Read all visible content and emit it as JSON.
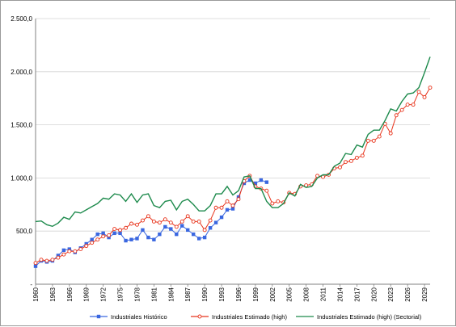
{
  "chart_data": {
    "type": "line",
    "title": "",
    "xlabel": "",
    "ylabel": "",
    "ylim": [
      0,
      2500
    ],
    "yticks": [
      0,
      500,
      1000,
      1500,
      2000,
      2500
    ],
    "ytick_labels": [
      "-",
      "500,0",
      "1.000,0",
      "1.500,0",
      "2.000,0",
      "2.500,0"
    ],
    "xlim": [
      1960,
      2030
    ],
    "xticks": [
      1960,
      1963,
      1966,
      1969,
      1972,
      1975,
      1978,
      1981,
      1984,
      1987,
      1990,
      1993,
      1996,
      1999,
      2002,
      2005,
      2008,
      2011,
      2014,
      2017,
      2020,
      2023,
      2026,
      2029
    ],
    "grid": "horizontal",
    "legend_position": "bottom",
    "series": [
      {
        "name": "Industriales Histórico",
        "color": "#3a67e0",
        "marker": "square",
        "x": [
          1960,
          1961,
          1962,
          1963,
          1964,
          1965,
          1966,
          1967,
          1968,
          1969,
          1970,
          1971,
          1972,
          1973,
          1974,
          1975,
          1976,
          1977,
          1978,
          1979,
          1980,
          1981,
          1982,
          1983,
          1984,
          1985,
          1986,
          1987,
          1988,
          1989,
          1990,
          1991,
          1992,
          1993,
          1994,
          1995,
          1996,
          1997,
          1998,
          1999,
          2000,
          2001
        ],
        "y": [
          170,
          220,
          210,
          220,
          270,
          320,
          330,
          300,
          340,
          380,
          420,
          470,
          480,
          440,
          480,
          480,
          410,
          420,
          430,
          510,
          440,
          420,
          470,
          540,
          520,
          470,
          550,
          510,
          470,
          430,
          440,
          530,
          580,
          630,
          700,
          710,
          820,
          950,
          980,
          950,
          980,
          960
        ]
      },
      {
        "name": "Industriales Estimado (high)",
        "color": "#e8341c",
        "marker": "circle",
        "x": [
          1960,
          1961,
          1962,
          1963,
          1964,
          1965,
          1966,
          1967,
          1968,
          1969,
          1970,
          1971,
          1972,
          1973,
          1974,
          1975,
          1976,
          1977,
          1978,
          1979,
          1980,
          1981,
          1982,
          1983,
          1984,
          1985,
          1986,
          1987,
          1988,
          1989,
          1990,
          1991,
          1992,
          1993,
          1994,
          1995,
          1996,
          1997,
          1998,
          1999,
          2000,
          2001,
          2002,
          2003,
          2004,
          2005,
          2006,
          2007,
          2008,
          2009,
          2010,
          2011,
          2012,
          2013,
          2014,
          2015,
          2016,
          2017,
          2018,
          2019,
          2020,
          2021,
          2022,
          2023,
          2024,
          2025,
          2026,
          2027,
          2028,
          2029,
          2030
        ],
        "y": [
          200,
          230,
          220,
          230,
          250,
          280,
          310,
          310,
          330,
          360,
          390,
          420,
          450,
          460,
          520,
          510,
          530,
          570,
          560,
          600,
          640,
          590,
          580,
          610,
          580,
          540,
          590,
          640,
          590,
          590,
          510,
          600,
          720,
          720,
          780,
          740,
          800,
          970,
          1020,
          920,
          900,
          880,
          760,
          780,
          770,
          860,
          850,
          920,
          930,
          940,
          1020,
          1010,
          1030,
          1090,
          1100,
          1150,
          1160,
          1190,
          1210,
          1350,
          1350,
          1390,
          1510,
          1420,
          1590,
          1640,
          1690,
          1690,
          1810,
          1760,
          1850
        ]
      },
      {
        "name": "Industriales Estimado (high) (Sectorial)",
        "color": "#1d8a4c",
        "marker": "none",
        "x": [
          1960,
          1961,
          1962,
          1963,
          1964,
          1965,
          1966,
          1967,
          1968,
          1969,
          1970,
          1971,
          1972,
          1973,
          1974,
          1975,
          1976,
          1977,
          1978,
          1979,
          1980,
          1981,
          1982,
          1983,
          1984,
          1985,
          1986,
          1987,
          1988,
          1989,
          1990,
          1991,
          1992,
          1993,
          1994,
          1995,
          1996,
          1997,
          1998,
          1999,
          2000,
          2001,
          2002,
          2003,
          2004,
          2005,
          2006,
          2007,
          2008,
          2009,
          2010,
          2011,
          2012,
          2013,
          2014,
          2015,
          2016,
          2017,
          2018,
          2019,
          2020,
          2021,
          2022,
          2023,
          2024,
          2025,
          2026,
          2027,
          2028,
          2029,
          2030
        ],
        "y": [
          590,
          595,
          560,
          545,
          575,
          630,
          610,
          680,
          670,
          700,
          730,
          760,
          810,
          800,
          850,
          840,
          780,
          850,
          770,
          840,
          850,
          740,
          720,
          780,
          790,
          700,
          780,
          800,
          750,
          690,
          690,
          740,
          850,
          850,
          920,
          840,
          880,
          1010,
          1020,
          900,
          900,
          780,
          720,
          720,
          760,
          860,
          830,
          940,
          910,
          920,
          1000,
          1030,
          1030,
          1110,
          1140,
          1230,
          1220,
          1310,
          1290,
          1410,
          1450,
          1450,
          1540,
          1650,
          1630,
          1720,
          1790,
          1800,
          1850,
          1990,
          2140
        ]
      }
    ]
  }
}
